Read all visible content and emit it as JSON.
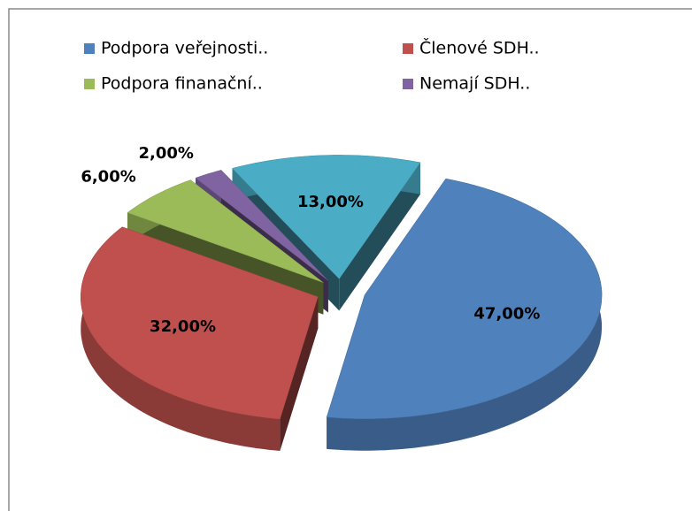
{
  "chart_data": {
    "type": "pie3d",
    "categories": [
      "Podpora veřejnosti..",
      "Členové SDH..",
      "Podpora finanační..",
      "Nemají SDH..",
      null
    ],
    "values": [
      47,
      32,
      6,
      2,
      13
    ],
    "value_labels": [
      "47,00%",
      "32,00%",
      "6,00%",
      "2,00%",
      "13,00%"
    ],
    "colors": [
      "#4f81bd",
      "#c0504d",
      "#9bbb59",
      "#8064a2",
      "#4bacc6"
    ],
    "legend": "top"
  }
}
